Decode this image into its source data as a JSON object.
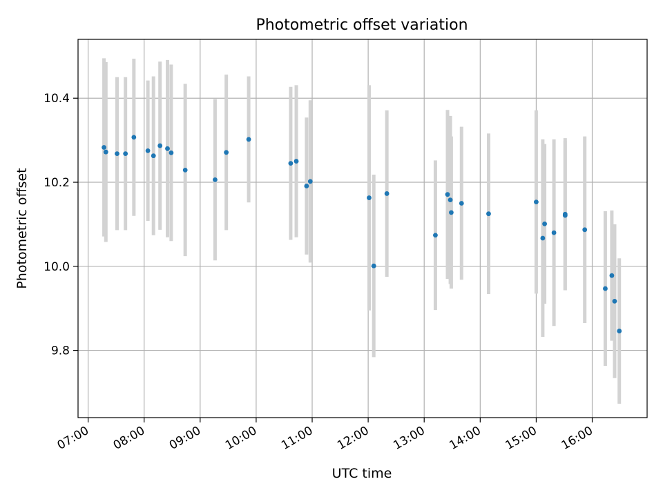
{
  "chart_data": {
    "type": "scatter",
    "title": "Photometric offset variation",
    "xlabel": "UTC time",
    "ylabel": "Photometric offset",
    "x_ticks": [
      "07:00",
      "08:00",
      "09:00",
      "10:00",
      "11:00",
      "12:00",
      "13:00",
      "14:00",
      "15:00",
      "16:00"
    ],
    "x_tick_hours": [
      7,
      8,
      9,
      10,
      11,
      12,
      13,
      14,
      15,
      16
    ],
    "xlim_hours": [
      6.82,
      16.98
    ],
    "y_ticks": [
      9.8,
      10.0,
      10.2,
      10.4
    ],
    "ylim": [
      9.64,
      10.54
    ],
    "grid": true,
    "colors": {
      "point": "#1f77b4",
      "errorbar": "#d3d3d3",
      "grid": "#b0b0b0"
    },
    "points": [
      {
        "time": "07:17",
        "value": 10.283,
        "error": 0.212
      },
      {
        "time": "07:19",
        "value": 10.272,
        "error": 0.214
      },
      {
        "time": "07:31",
        "value": 10.268,
        "error": 0.182
      },
      {
        "time": "07:40",
        "value": 10.268,
        "error": 0.182
      },
      {
        "time": "07:49",
        "value": 10.307,
        "error": 0.187
      },
      {
        "time": "08:04",
        "value": 10.275,
        "error": 0.167
      },
      {
        "time": "08:10",
        "value": 10.263,
        "error": 0.189
      },
      {
        "time": "08:17",
        "value": 10.287,
        "error": 0.2
      },
      {
        "time": "08:25",
        "value": 10.28,
        "error": 0.211
      },
      {
        "time": "08:29",
        "value": 10.27,
        "error": 0.21
      },
      {
        "time": "08:44",
        "value": 10.229,
        "error": 0.205
      },
      {
        "time": "09:16",
        "value": 10.206,
        "error": 0.192
      },
      {
        "time": "09:28",
        "value": 10.271,
        "error": 0.185
      },
      {
        "time": "09:52",
        "value": 10.302,
        "error": 0.15
      },
      {
        "time": "10:37",
        "value": 10.245,
        "error": 0.182
      },
      {
        "time": "10:43",
        "value": 10.25,
        "error": 0.181
      },
      {
        "time": "10:54",
        "value": 10.191,
        "error": 0.163
      },
      {
        "time": "10:58",
        "value": 10.202,
        "error": 0.193
      },
      {
        "time": "12:01",
        "value": 10.163,
        "error": 0.268
      },
      {
        "time": "12:06",
        "value": 10.001,
        "error": 0.217
      },
      {
        "time": "12:20",
        "value": 10.173,
        "error": 0.198
      },
      {
        "time": "13:12",
        "value": 10.074,
        "error": 0.178
      },
      {
        "time": "13:25",
        "value": 10.171,
        "error": 0.201
      },
      {
        "time": "13:28",
        "value": 10.158,
        "error": 0.2
      },
      {
        "time": "13:29",
        "value": 10.128,
        "error": 0.181
      },
      {
        "time": "13:40",
        "value": 10.15,
        "error": 0.182
      },
      {
        "time": "14:09",
        "value": 10.125,
        "error": 0.191
      },
      {
        "time": "15:00",
        "value": 10.153,
        "error": 0.218
      },
      {
        "time": "15:07",
        "value": 10.067,
        "error": 0.235
      },
      {
        "time": "15:09",
        "value": 10.101,
        "error": 0.19
      },
      {
        "time": "15:19",
        "value": 10.08,
        "error": 0.222
      },
      {
        "time": "15:31",
        "value": 10.124,
        "error": 0.181
      },
      {
        "time": "15:31",
        "value": 10.121,
        "error": 0.178
      },
      {
        "time": "15:52",
        "value": 10.087,
        "error": 0.222
      },
      {
        "time": "16:14",
        "value": 9.947,
        "error": 0.184
      },
      {
        "time": "16:21",
        "value": 9.978,
        "error": 0.155
      },
      {
        "time": "16:24",
        "value": 9.917,
        "error": 0.183
      },
      {
        "time": "16:29",
        "value": 9.846,
        "error": 0.173
      }
    ]
  }
}
